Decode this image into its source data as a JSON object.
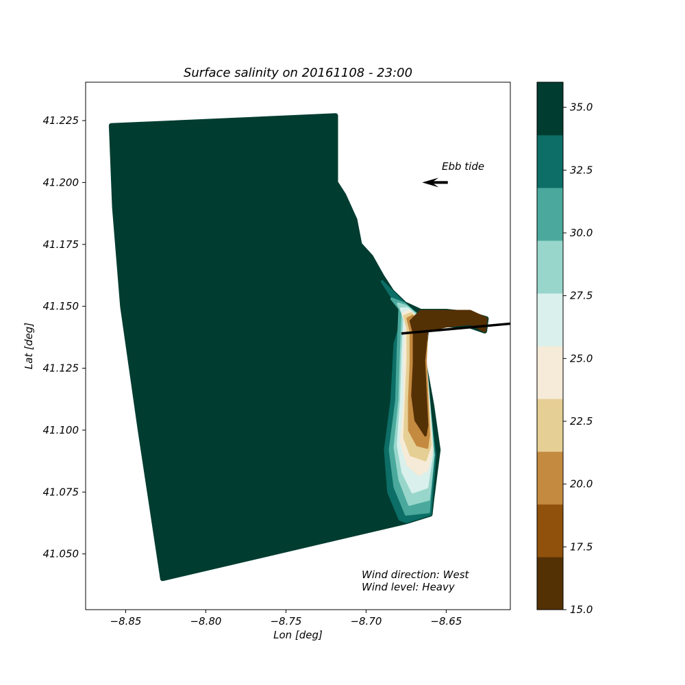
{
  "chart_data": {
    "type": "scatter",
    "title": "Surface salinity on 20161108 - 23:00",
    "xlabel": "Lon [deg]",
    "ylabel": "Lat [deg]",
    "xlim": [
      -8.875,
      -8.61
    ],
    "ylim": [
      41.0275,
      41.2405
    ],
    "xticks": [
      -8.85,
      -8.8,
      -8.75,
      -8.7,
      -8.65
    ],
    "xtick_labels": [
      "−8.85",
      "−8.80",
      "−8.75",
      "−8.70",
      "−8.65"
    ],
    "yticks": [
      41.05,
      41.075,
      41.1,
      41.125,
      41.15,
      41.175,
      41.2,
      41.225
    ],
    "ytick_labels": [
      "41.050",
      "41.075",
      "41.100",
      "41.125",
      "41.150",
      "41.175",
      "41.200",
      "41.225"
    ],
    "grid": false,
    "colorbar": {
      "range": [
        15.0,
        36.0
      ],
      "boundaries": [
        15.0,
        17.1,
        19.2,
        21.3,
        23.4,
        25.5,
        27.6,
        29.7,
        31.8,
        33.9,
        36.0
      ],
      "colors": [
        "#543005",
        "#8f510b",
        "#c48a40",
        "#e6cf94",
        "#f5ebd8",
        "#d9f0ec",
        "#98d6cb",
        "#4aa99c",
        "#0c6e66",
        "#003c30"
      ],
      "ticks": [
        15.0,
        17.5,
        20.0,
        22.5,
        25.0,
        27.5,
        30.0,
        32.5,
        35.0
      ],
      "tick_labels": [
        "15.0",
        "17.5",
        "20.0",
        "22.5",
        "25.0",
        "27.5",
        "30.0",
        "32.5",
        "35.0"
      ]
    },
    "domain_outline": [
      [
        -8.859,
        41.223
      ],
      [
        -8.719,
        41.227
      ],
      [
        -8.719,
        41.2
      ],
      [
        -8.714,
        41.195
      ],
      [
        -8.707,
        41.185
      ],
      [
        -8.704,
        41.175
      ],
      [
        -8.697,
        41.17
      ],
      [
        -8.69,
        41.162
      ],
      [
        -8.684,
        41.156
      ],
      [
        -8.676,
        41.151
      ],
      [
        -8.666,
        41.148
      ],
      [
        -8.65,
        41.148
      ],
      [
        -8.635,
        41.147
      ],
      [
        -8.625,
        41.145
      ],
      [
        -8.626,
        41.14
      ],
      [
        -8.635,
        41.142
      ],
      [
        -8.662,
        41.143
      ],
      [
        -8.664,
        41.128
      ],
      [
        -8.659,
        41.11
      ],
      [
        -8.655,
        41.092
      ],
      [
        -8.657,
        41.082
      ],
      [
        -8.659,
        41.072
      ],
      [
        -8.66,
        41.066
      ],
      [
        -8.675,
        41.063
      ],
      [
        -8.827,
        41.04
      ],
      [
        -8.841,
        41.1
      ],
      [
        -8.852,
        41.15
      ],
      [
        -8.857,
        41.19
      ]
    ],
    "plume_bands": [
      {
        "salinity": 32.5,
        "outline": [
          [
            -8.69,
            41.16
          ],
          [
            -8.682,
            41.152
          ],
          [
            -8.676,
            41.148
          ],
          [
            -8.682,
            41.135
          ],
          [
            -8.684,
            41.112
          ],
          [
            -8.688,
            41.092
          ],
          [
            -8.686,
            41.075
          ],
          [
            -8.679,
            41.064
          ],
          [
            -8.675,
            41.063
          ],
          [
            -8.66,
            41.066
          ],
          [
            -8.657,
            41.09
          ],
          [
            -8.664,
            41.128
          ],
          [
            -8.662,
            41.143
          ],
          [
            -8.676,
            41.151
          ]
        ]
      },
      {
        "salinity": 30.0,
        "outline": [
          [
            -8.684,
            41.153
          ],
          [
            -8.679,
            41.149
          ],
          [
            -8.68,
            41.133
          ],
          [
            -8.681,
            41.112
          ],
          [
            -8.685,
            41.092
          ],
          [
            -8.682,
            41.077
          ],
          [
            -8.675,
            41.066
          ],
          [
            -8.661,
            41.067
          ],
          [
            -8.658,
            41.09
          ],
          [
            -8.663,
            41.128
          ],
          [
            -8.662,
            41.143
          ],
          [
            -8.676,
            41.151
          ]
        ]
      },
      {
        "salinity": 28.5,
        "outline": [
          [
            -8.68,
            41.151
          ],
          [
            -8.677,
            41.147
          ],
          [
            -8.678,
            41.132
          ],
          [
            -8.679,
            41.112
          ],
          [
            -8.682,
            41.093
          ],
          [
            -8.679,
            41.08
          ],
          [
            -8.673,
            41.07
          ],
          [
            -8.661,
            41.072
          ],
          [
            -8.658,
            41.09
          ],
          [
            -8.663,
            41.128
          ],
          [
            -8.662,
            41.143
          ],
          [
            -8.675,
            41.15
          ]
        ]
      },
      {
        "salinity": 26.5,
        "outline": [
          [
            -8.678,
            41.149
          ],
          [
            -8.676,
            41.145
          ],
          [
            -8.677,
            41.131
          ],
          [
            -8.678,
            41.112
          ],
          [
            -8.68,
            41.094
          ],
          [
            -8.677,
            41.083
          ],
          [
            -8.671,
            41.075
          ],
          [
            -8.662,
            41.077
          ],
          [
            -8.659,
            41.09
          ],
          [
            -8.663,
            41.128
          ],
          [
            -8.662,
            41.142
          ],
          [
            -8.674,
            41.149
          ]
        ]
      },
      {
        "salinity": 24.5,
        "outline": [
          [
            -8.677,
            41.147
          ],
          [
            -8.675,
            41.143
          ],
          [
            -8.676,
            41.13
          ],
          [
            -8.676,
            41.112
          ],
          [
            -8.678,
            41.095
          ],
          [
            -8.674,
            41.086
          ],
          [
            -8.667,
            41.082
          ],
          [
            -8.662,
            41.084
          ],
          [
            -8.659,
            41.092
          ],
          [
            -8.663,
            41.128
          ],
          [
            -8.662,
            41.142
          ],
          [
            -8.673,
            41.148
          ]
        ]
      },
      {
        "salinity": 22.0,
        "outline": [
          [
            -8.676,
            41.146
          ],
          [
            -8.674,
            41.141
          ],
          [
            -8.674,
            41.128
          ],
          [
            -8.675,
            41.112
          ],
          [
            -8.676,
            41.097
          ],
          [
            -8.672,
            41.09
          ],
          [
            -8.663,
            41.088
          ],
          [
            -8.66,
            41.094
          ],
          [
            -8.663,
            41.128
          ],
          [
            -8.662,
            41.142
          ],
          [
            -8.672,
            41.147
          ]
        ]
      },
      {
        "salinity": 19.5,
        "outline": [
          [
            -8.674,
            41.145
          ],
          [
            -8.672,
            41.14
          ],
          [
            -8.672,
            41.127
          ],
          [
            -8.673,
            41.112
          ],
          [
            -8.673,
            41.1
          ],
          [
            -8.668,
            41.094
          ],
          [
            -8.662,
            41.093
          ],
          [
            -8.661,
            41.098
          ],
          [
            -8.663,
            41.128
          ],
          [
            -8.662,
            41.141
          ],
          [
            -8.671,
            41.146
          ]
        ]
      },
      {
        "salinity": 16.0,
        "outline": [
          [
            -8.672,
            41.144
          ],
          [
            -8.67,
            41.139
          ],
          [
            -8.67,
            41.127
          ],
          [
            -8.671,
            41.114
          ],
          [
            -8.669,
            41.104
          ],
          [
            -8.663,
            41.098
          ],
          [
            -8.662,
            41.102
          ],
          [
            -8.664,
            41.128
          ],
          [
            -8.662,
            41.14
          ],
          [
            -8.65,
            41.142
          ],
          [
            -8.635,
            41.143
          ],
          [
            -8.626,
            41.14
          ],
          [
            -8.625,
            41.145
          ],
          [
            -8.635,
            41.148
          ],
          [
            -8.65,
            41.148
          ],
          [
            -8.666,
            41.148
          ]
        ]
      }
    ],
    "river_line": [
      [
        -8.678,
        41.139
      ],
      [
        -8.61,
        41.143
      ]
    ],
    "ebb_arrow": {
      "from": [
        -8.649,
        41.2
      ],
      "to": [
        -8.665,
        41.2
      ]
    }
  },
  "annotations": {
    "tide": "Ebb tide",
    "wind_direction": "Wind direction: West",
    "wind_level": "Wind level: Heavy"
  }
}
